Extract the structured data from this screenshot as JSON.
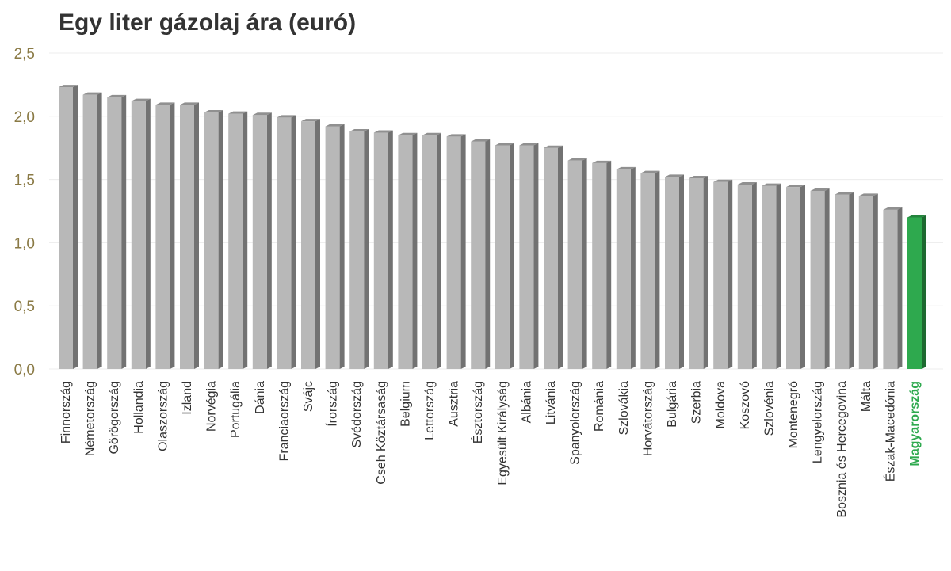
{
  "chart_data": {
    "type": "bar",
    "title": "Egy liter gázolaj ára (euró)",
    "xlabel": "",
    "ylabel": "",
    "ylim": [
      0,
      2.5
    ],
    "yticks": [
      "0,0",
      "0,5",
      "1,0",
      "1,5",
      "2,0",
      "2,5"
    ],
    "grid": true,
    "legend": "none",
    "colors": {
      "bar": "#b8b8b8",
      "highlight": "#2ea94e",
      "tick_text": "#8a7a45",
      "title": "#333333"
    },
    "highlight_category": "Magyarország",
    "categories": [
      "Finnország",
      "Németország",
      "Görögország",
      "Hollandia",
      "Olaszország",
      "Izland",
      "Norvégia",
      "Portugália",
      "Dánia",
      "Franciaország",
      "Svájc",
      "Írország",
      "Svédország",
      "Cseh Köztársaság",
      "Belgium",
      "Lettország",
      "Ausztria",
      "Észtország",
      "Egyesült Királyság",
      "Albánia",
      "Litvánia",
      "Spanyolország",
      "Románia",
      "Szlovákia",
      "Horvátország",
      "Bulgária",
      "Szerbia",
      "Moldova",
      "Koszovó",
      "Szlovénia",
      "Montenegró",
      "Lengyelország",
      "Bosznia és Hercegovina",
      "Málta",
      "Észak-Macedónia",
      "Magyarország"
    ],
    "values": [
      2.23,
      2.17,
      2.15,
      2.12,
      2.09,
      2.09,
      2.03,
      2.02,
      2.01,
      1.99,
      1.96,
      1.92,
      1.88,
      1.87,
      1.85,
      1.85,
      1.84,
      1.8,
      1.77,
      1.77,
      1.75,
      1.65,
      1.63,
      1.58,
      1.55,
      1.52,
      1.51,
      1.48,
      1.46,
      1.45,
      1.44,
      1.41,
      1.38,
      1.37,
      1.26,
      1.2
    ]
  }
}
